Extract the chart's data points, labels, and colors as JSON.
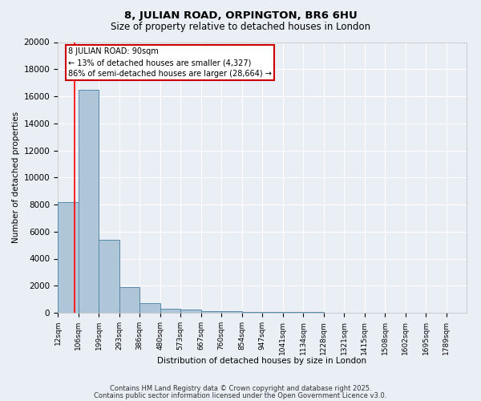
{
  "title1": "8, JULIAN ROAD, ORPINGTON, BR6 6HU",
  "title2": "Size of property relative to detached houses in London",
  "xlabel": "Distribution of detached houses by size in London",
  "ylabel": "Number of detached properties",
  "bin_edges": [
    12,
    106,
    199,
    293,
    386,
    480,
    573,
    667,
    760,
    854,
    947,
    1041,
    1134,
    1228,
    1321,
    1415,
    1508,
    1602,
    1695,
    1789,
    1882
  ],
  "bar_heights": [
    8200,
    16500,
    5400,
    1900,
    700,
    300,
    250,
    130,
    100,
    80,
    60,
    40,
    30,
    25,
    20,
    15,
    12,
    10,
    8,
    6
  ],
  "bar_color": "#aec6d8",
  "bar_edge_color": "#5588aa",
  "red_line_x": 90,
  "annotation_text": "8 JULIAN ROAD: 90sqm\n← 13% of detached houses are smaller (4,327)\n86% of semi-detached houses are larger (28,664) →",
  "ylim": [
    0,
    20000
  ],
  "yticks": [
    0,
    2000,
    4000,
    6000,
    8000,
    10000,
    12000,
    14000,
    16000,
    18000,
    20000
  ],
  "background_color": "#eaeef5",
  "grid_color": "#ffffff",
  "footer1": "Contains HM Land Registry data © Crown copyright and database right 2025.",
  "footer2": "Contains public sector information licensed under the Open Government Licence v3.0."
}
